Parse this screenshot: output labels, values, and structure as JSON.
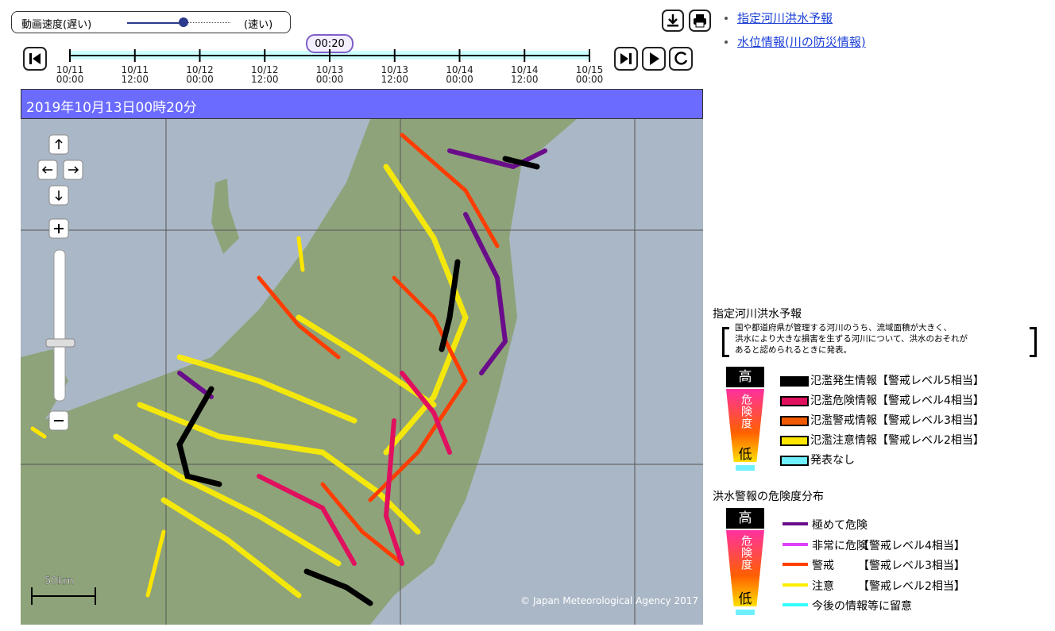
{
  "speed": {
    "slow": "動画速度(遅い)",
    "fast": "(速い)"
  },
  "timeline": {
    "current": "00:20",
    "ticks": [
      {
        "date": "10/11",
        "time": "00:00"
      },
      {
        "date": "10/11",
        "time": "12:00"
      },
      {
        "date": "10/12",
        "time": "00:00"
      },
      {
        "date": "10/12",
        "time": "12:00"
      },
      {
        "date": "10/13",
        "time": "00:00"
      },
      {
        "date": "10/13",
        "time": "12:00"
      },
      {
        "date": "10/14",
        "time": "00:00"
      },
      {
        "date": "10/14",
        "time": "12:00"
      },
      {
        "date": "10/15",
        "time": "00:00"
      }
    ]
  },
  "links": [
    "指定河川洪水予報",
    "水位情報(川の防災情報)"
  ],
  "map": {
    "datetime": "2019年10月13日00時20分",
    "scale": "50km",
    "copyright": "© Japan Meteorological Agency 2017"
  },
  "legend_forecast": {
    "title": "指定河川洪水予報",
    "note": [
      "国や都道府県が管理する河川のうち、流域面積が大きく、",
      "洪水により大きな損害を生ずる河川について、洪水のおそれが",
      "あると認められるときに発表。"
    ],
    "scale": {
      "high": "高",
      "mid": "危険度",
      "low": "低"
    },
    "items": [
      {
        "label": "氾濫発生情報【警戒レベル5相当】",
        "color": "#000000"
      },
      {
        "label": "氾濫危険情報【警戒レベル4相当】",
        "color": "#e0105f"
      },
      {
        "label": "氾濫警戒情報【警戒レベル3相当】",
        "color": "#f05a00"
      },
      {
        "label": "氾濫注意情報【警戒レベル2相当】",
        "color": "#ffe600"
      },
      {
        "label": "発表なし",
        "color": "#70f0ff"
      }
    ]
  },
  "legend_warning": {
    "title": "洪水警報の危険度分布",
    "scale": {
      "high": "高",
      "mid": "危険度",
      "low": "低"
    },
    "items": [
      {
        "name": "極めて危険",
        "color": "#6a0d8a"
      },
      {
        "name": "非常に危険",
        "level": "【警戒レベル4相当】",
        "color": "#e040fb"
      },
      {
        "name": "警戒",
        "level": "【警戒レベル3相当】",
        "color": "#ff3d00"
      },
      {
        "name": "注意",
        "level": "【警戒レベル2相当】",
        "color": "#ffee00"
      },
      {
        "name": "今後の情報等に留意",
        "color": "#33ffff"
      }
    ]
  }
}
